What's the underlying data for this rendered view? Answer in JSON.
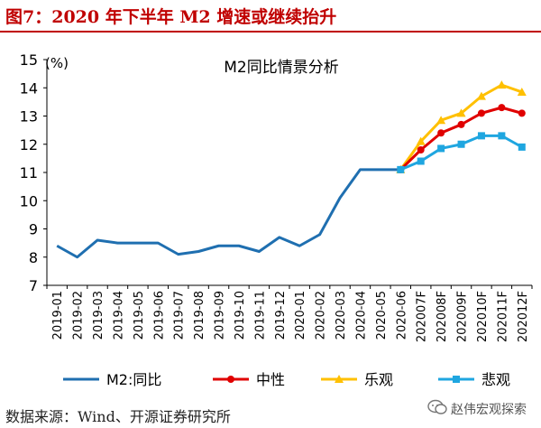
{
  "header": {
    "figure_title": "图7：2020 年下半年 M2 增速或继续抬升"
  },
  "footer": {
    "source": "数据来源：Wind、开源证券研究所"
  },
  "watermark": {
    "text": "赵伟宏观探索"
  },
  "colors": {
    "brand_red": "#c00000",
    "actual": "#1f6fb0",
    "neutral": "#e00000",
    "optimistic": "#ffc000",
    "pessimistic": "#1fa6e0"
  },
  "chart_data": {
    "type": "line",
    "title": "M2同比情景分析",
    "ylabel": "(%)",
    "ylim": [
      7,
      15
    ],
    "yticks": [
      7,
      8,
      9,
      10,
      11,
      12,
      13,
      14,
      15
    ],
    "grid": false,
    "legend_position": "bottom",
    "categories": [
      "2019-01",
      "2019-02",
      "2019-03",
      "2019-04",
      "2019-05",
      "2019-06",
      "2019-07",
      "2019-08",
      "2019-09",
      "2019-10",
      "2019-11",
      "2019-12",
      "2020-01",
      "2020-02",
      "2020-03",
      "2020-04",
      "2020-05",
      "2020-06",
      "202007F",
      "202008F",
      "202009F",
      "202010F",
      "202011F",
      "202012F"
    ],
    "series": [
      {
        "name": "M2:同比",
        "color": "#1f6fb0",
        "marker": "none",
        "values": [
          8.4,
          8.0,
          8.6,
          8.5,
          8.5,
          8.5,
          8.1,
          8.2,
          8.4,
          8.4,
          8.2,
          8.7,
          8.4,
          8.8,
          10.1,
          11.1,
          11.1,
          11.1,
          null,
          null,
          null,
          null,
          null,
          null
        ]
      },
      {
        "name": "中性",
        "color": "#e00000",
        "marker": "circle",
        "values": [
          null,
          null,
          null,
          null,
          null,
          null,
          null,
          null,
          null,
          null,
          null,
          null,
          null,
          null,
          null,
          null,
          null,
          11.1,
          11.8,
          12.4,
          12.7,
          13.1,
          13.3,
          13.1
        ]
      },
      {
        "name": "乐观",
        "color": "#ffc000",
        "marker": "triangle",
        "values": [
          null,
          null,
          null,
          null,
          null,
          null,
          null,
          null,
          null,
          null,
          null,
          null,
          null,
          null,
          null,
          null,
          null,
          11.1,
          12.1,
          12.85,
          13.1,
          13.7,
          14.1,
          13.85
        ]
      },
      {
        "name": "悲观",
        "color": "#1fa6e0",
        "marker": "square",
        "values": [
          null,
          null,
          null,
          null,
          null,
          null,
          null,
          null,
          null,
          null,
          null,
          null,
          null,
          null,
          null,
          null,
          null,
          11.1,
          11.4,
          11.85,
          12.0,
          12.3,
          12.3,
          11.9
        ]
      }
    ]
  }
}
